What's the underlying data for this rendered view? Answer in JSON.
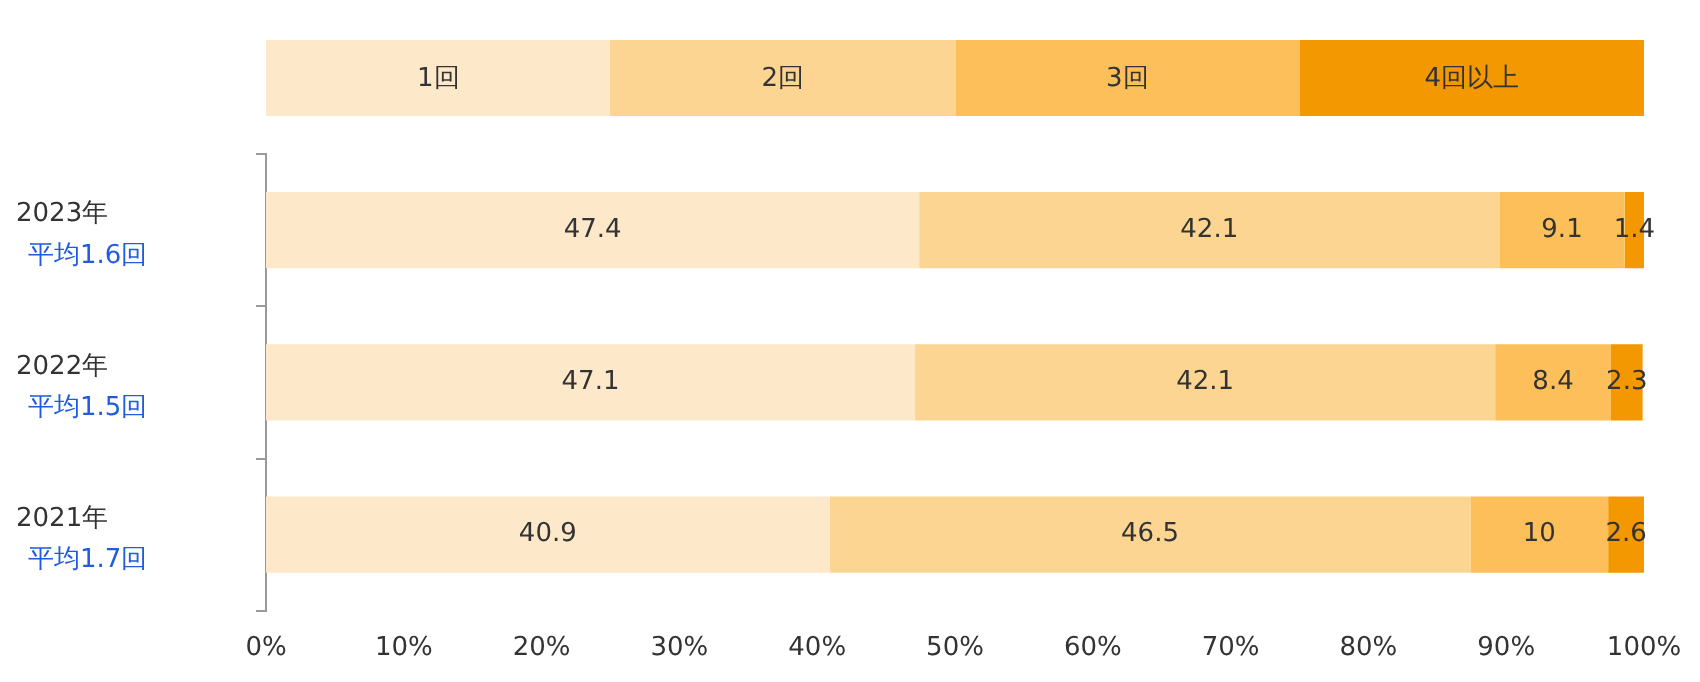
{
  "chart_data": {
    "type": "bar",
    "orientation": "horizontal",
    "stacked": true,
    "categories": [
      "2023年",
      "2022年",
      "2021年"
    ],
    "series": [
      {
        "name": "1回",
        "color": "#fde9c9",
        "values": [
          47.4,
          47.1,
          40.9
        ]
      },
      {
        "name": "2回",
        "color": "#fdd592",
        "values": [
          42.1,
          42.1,
          46.5
        ]
      },
      {
        "name": "3回",
        "color": "#fdbf5a",
        "values": [
          9.1,
          8.4,
          10
        ]
      },
      {
        "name": "4回以上",
        "color": "#f39800",
        "values": [
          1.4,
          2.3,
          2.6
        ]
      }
    ],
    "xlim": [
      0,
      100
    ],
    "xticks": [
      {
        "value": 0,
        "label": "0%"
      },
      {
        "value": 10,
        "label": "10%"
      },
      {
        "value": 20,
        "label": "20%"
      },
      {
        "value": 30,
        "label": "30%"
      },
      {
        "value": 40,
        "label": "40%"
      },
      {
        "value": 50,
        "label": "50%"
      },
      {
        "value": 60,
        "label": "60%"
      },
      {
        "value": 70,
        "label": "70%"
      },
      {
        "value": 80,
        "label": "80%"
      },
      {
        "value": 90,
        "label": "90%"
      },
      {
        "value": 100,
        "label": "100%"
      }
    ],
    "annotations": [
      "平均1.6回",
      "平均1.5回",
      "平均1.7回"
    ],
    "data_labels": true,
    "legend": "top",
    "grid": false
  }
}
